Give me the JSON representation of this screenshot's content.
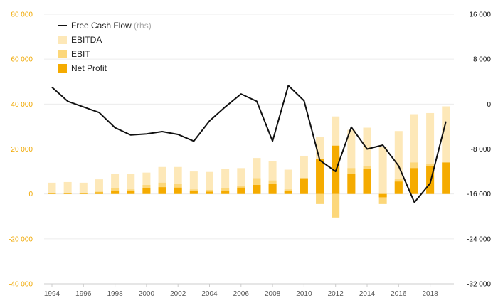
{
  "chart_data": {
    "type": "bar",
    "x": [
      1994,
      1995,
      1996,
      1997,
      1998,
      1999,
      2000,
      2001,
      2002,
      2003,
      2004,
      2005,
      2006,
      2007,
      2008,
      2009,
      2010,
      2011,
      2012,
      2013,
      2014,
      2015,
      2016,
      2017,
      2018,
      2019
    ],
    "x_tick_labels": [
      "1994",
      "1996",
      "1998",
      "2000",
      "2002",
      "2004",
      "2006",
      "2008",
      "2010",
      "2012",
      "2014",
      "2016",
      "2018"
    ],
    "x_tick_values": [
      1994,
      1996,
      1998,
      2000,
      2002,
      2004,
      2006,
      2008,
      2010,
      2012,
      2014,
      2016,
      2018
    ],
    "y_left": {
      "lim": [
        -40000,
        80000
      ],
      "ticks": [
        -40000,
        -20000,
        0,
        20000,
        40000,
        60000,
        80000
      ],
      "tick_labels": [
        "-40 000",
        "-20 000",
        "0",
        "20 000",
        "40 000",
        "60 000",
        "80 000"
      ]
    },
    "y_right": {
      "lim": [
        -32000,
        16000
      ],
      "ticks": [
        -32000,
        -24000,
        -16000,
        -8000,
        0,
        8000,
        16000
      ],
      "tick_labels": [
        "-32 000",
        "-24 000",
        "-16 000",
        "-8 000",
        "0",
        "8 000",
        "16 000"
      ]
    },
    "legend": {
      "fcf": "Free Cash Flow",
      "fcf_suffix": "(rhs)",
      "ebitda": "EBITDA",
      "ebit": "EBIT",
      "net": "Net Profit"
    },
    "series": [
      {
        "name": "EBITDA",
        "axis": "left",
        "color": "#fde8b8",
        "values": [
          5000,
          5300,
          5000,
          6500,
          9000,
          8800,
          9500,
          12000,
          12000,
          10000,
          9800,
          11000,
          11500,
          16000,
          14500,
          10800,
          17000,
          25500,
          34500,
          28500,
          29500,
          21000,
          28000,
          35500,
          36000,
          39000
        ]
      },
      {
        "name": "EBIT",
        "axis": "left",
        "color": "#fcd77a",
        "values": [
          400,
          500,
          400,
          1000,
          2500,
          2000,
          4000,
          5000,
          4500,
          2000,
          1800,
          2500,
          3500,
          7000,
          6000,
          2000,
          6500,
          -4500,
          -10500,
          11500,
          12500,
          -4500,
          6500,
          14000,
          13500,
          14000
        ]
      },
      {
        "name": "Net Profit",
        "axis": "left",
        "color": "#f5ab00",
        "values": [
          200,
          300,
          200,
          700,
          1500,
          1200,
          2500,
          3000,
          2800,
          1200,
          1000,
          1500,
          2800,
          4000,
          4500,
          1200,
          7000,
          15500,
          21500,
          9000,
          11000,
          -1500,
          5500,
          11500,
          12500,
          14000
        ]
      },
      {
        "name": "Free Cash Flow",
        "axis": "right",
        "color": "#111111",
        "type": "line",
        "values": [
          3000,
          500,
          -500,
          -1500,
          -4200,
          -5500,
          -5300,
          -4900,
          -5400,
          -6600,
          -3000,
          -500,
          1800,
          500,
          -6600,
          3300,
          600,
          -10000,
          -12000,
          -4100,
          -8000,
          -7300,
          -11000,
          -17500,
          -14100,
          -3100
        ]
      }
    ],
    "grid": true,
    "legend_placement": "top-left"
  }
}
